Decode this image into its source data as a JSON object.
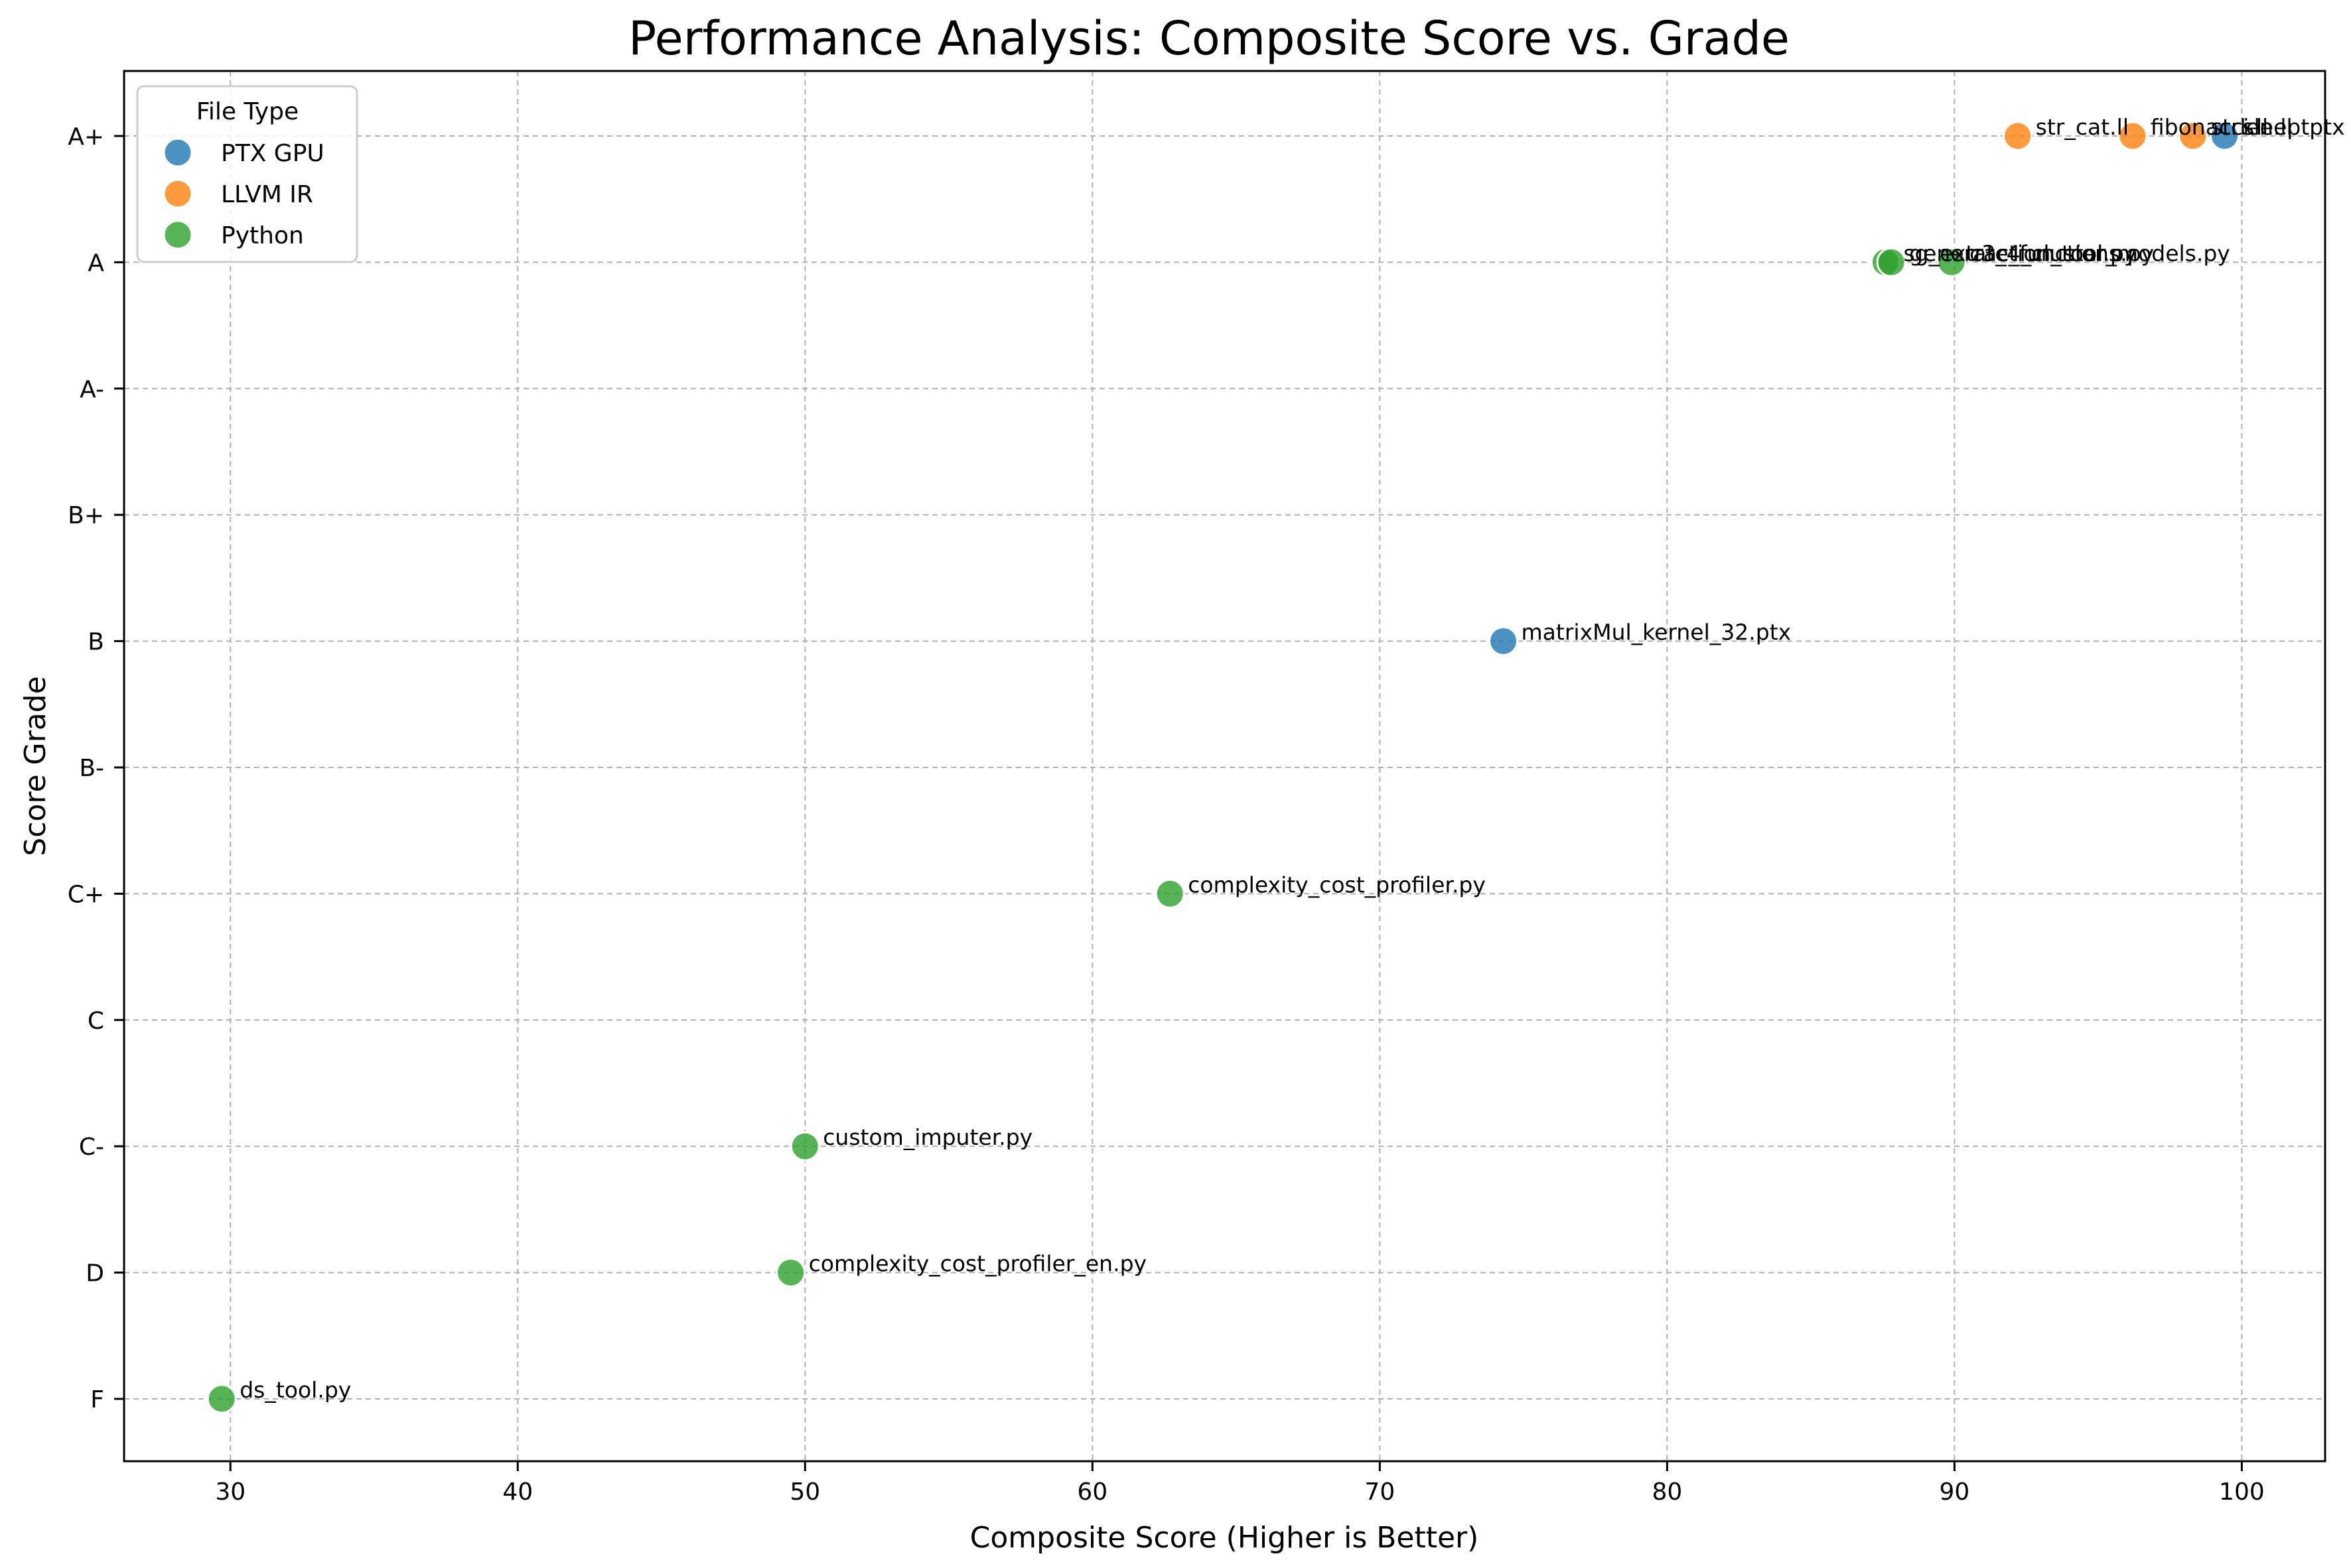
{
  "chart_data": {
    "type": "scatter",
    "title": "Performance Analysis: Composite Score vs. Grade",
    "xlabel": "Composite Score (Higher is Better)",
    "ylabel": "Score Grade",
    "xlim": [
      26.3,
      102.9
    ],
    "xticks": [
      30,
      40,
      50,
      60,
      70,
      80,
      90,
      100
    ],
    "grades": [
      "F",
      "D",
      "C-",
      "C",
      "C+",
      "B-",
      "B",
      "B+",
      "A-",
      "A",
      "A+"
    ],
    "grid": true,
    "legend": {
      "title": "File Type",
      "placement": "top-left"
    },
    "series": [
      {
        "name": "PTX GPU",
        "color": "#1f77b4",
        "points": [
          {
            "label": "matrixMul_kernel_32.ptx",
            "x": 74.3,
            "y": "B"
          },
          {
            "label": "sleeptptx",
            "x": 99.4,
            "y": "A+"
          }
        ]
      },
      {
        "name": "LLVM IR",
        "color": "#ff7f0e",
        "points": [
          {
            "label": "str_cat.ll",
            "x": 92.2,
            "y": "A+"
          },
          {
            "label": "fibonacci.ll",
            "x": 96.2,
            "y": "A+"
          },
          {
            "label": "strlen.ll",
            "x": 98.3,
            "y": "A+"
          }
        ]
      },
      {
        "name": "Python",
        "color": "#2ca02c",
        "points": [
          {
            "label": "sg_extraction_tool.py",
            "x": 87.6,
            "y": "A"
          },
          {
            "label": "generate_functions.py",
            "x": 87.8,
            "y": "A"
          },
          {
            "label": "c3_4_cluster_models.py",
            "x": 89.9,
            "y": "A"
          },
          {
            "label": "complexity_cost_profiler.py",
            "x": 62.7,
            "y": "C+"
          },
          {
            "label": "custom_imputer.py",
            "x": 50.0,
            "y": "C-"
          },
          {
            "label": "complexity_cost_profiler_en.py",
            "x": 49.5,
            "y": "D"
          },
          {
            "label": "ds_tool.py",
            "x": 29.7,
            "y": "F"
          }
        ]
      }
    ]
  }
}
